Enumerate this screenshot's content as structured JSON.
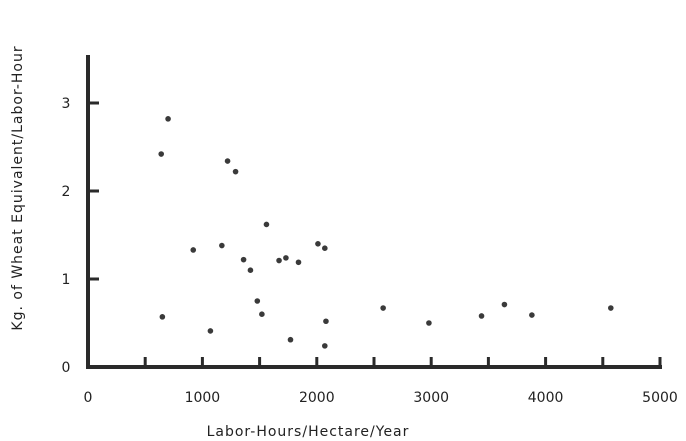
{
  "chart_data": {
    "type": "scatter",
    "title": "",
    "xlabel": "Labor-Hours/Hectare/Year",
    "ylabel": "Kg. of Wheat Equivalent/Labor-Hour",
    "xlim": [
      0,
      5000
    ],
    "ylim": [
      0,
      3.5
    ],
    "x_ticks": [
      0,
      1000,
      2000,
      3000,
      4000,
      5000
    ],
    "x_tick_labels": [
      "0",
      "1000",
      "2000",
      "3000",
      "4000",
      "5000"
    ],
    "x_minor_ticks": [
      500,
      1500,
      2500,
      3500,
      4500
    ],
    "y_ticks": [
      0,
      1,
      2,
      3
    ],
    "y_tick_labels": [
      "0",
      "1",
      "2",
      "3"
    ],
    "grid": false,
    "points": [
      {
        "x": 640,
        "y": 2.42
      },
      {
        "x": 700,
        "y": 2.82
      },
      {
        "x": 650,
        "y": 0.57
      },
      {
        "x": 920,
        "y": 1.33
      },
      {
        "x": 1070,
        "y": 0.41
      },
      {
        "x": 1170,
        "y": 1.38
      },
      {
        "x": 1220,
        "y": 2.34
      },
      {
        "x": 1290,
        "y": 2.22
      },
      {
        "x": 1360,
        "y": 1.22
      },
      {
        "x": 1420,
        "y": 1.1
      },
      {
        "x": 1480,
        "y": 0.75
      },
      {
        "x": 1520,
        "y": 0.6
      },
      {
        "x": 1560,
        "y": 1.62
      },
      {
        "x": 1670,
        "y": 1.21
      },
      {
        "x": 1730,
        "y": 1.24
      },
      {
        "x": 1770,
        "y": 0.31
      },
      {
        "x": 1840,
        "y": 1.19
      },
      {
        "x": 2010,
        "y": 1.4
      },
      {
        "x": 2070,
        "y": 1.35
      },
      {
        "x": 2080,
        "y": 0.52
      },
      {
        "x": 2070,
        "y": 0.24
      },
      {
        "x": 2580,
        "y": 0.67
      },
      {
        "x": 2980,
        "y": 0.5
      },
      {
        "x": 3440,
        "y": 0.58
      },
      {
        "x": 3640,
        "y": 0.71
      },
      {
        "x": 3880,
        "y": 0.59
      },
      {
        "x": 4570,
        "y": 0.67
      }
    ]
  }
}
